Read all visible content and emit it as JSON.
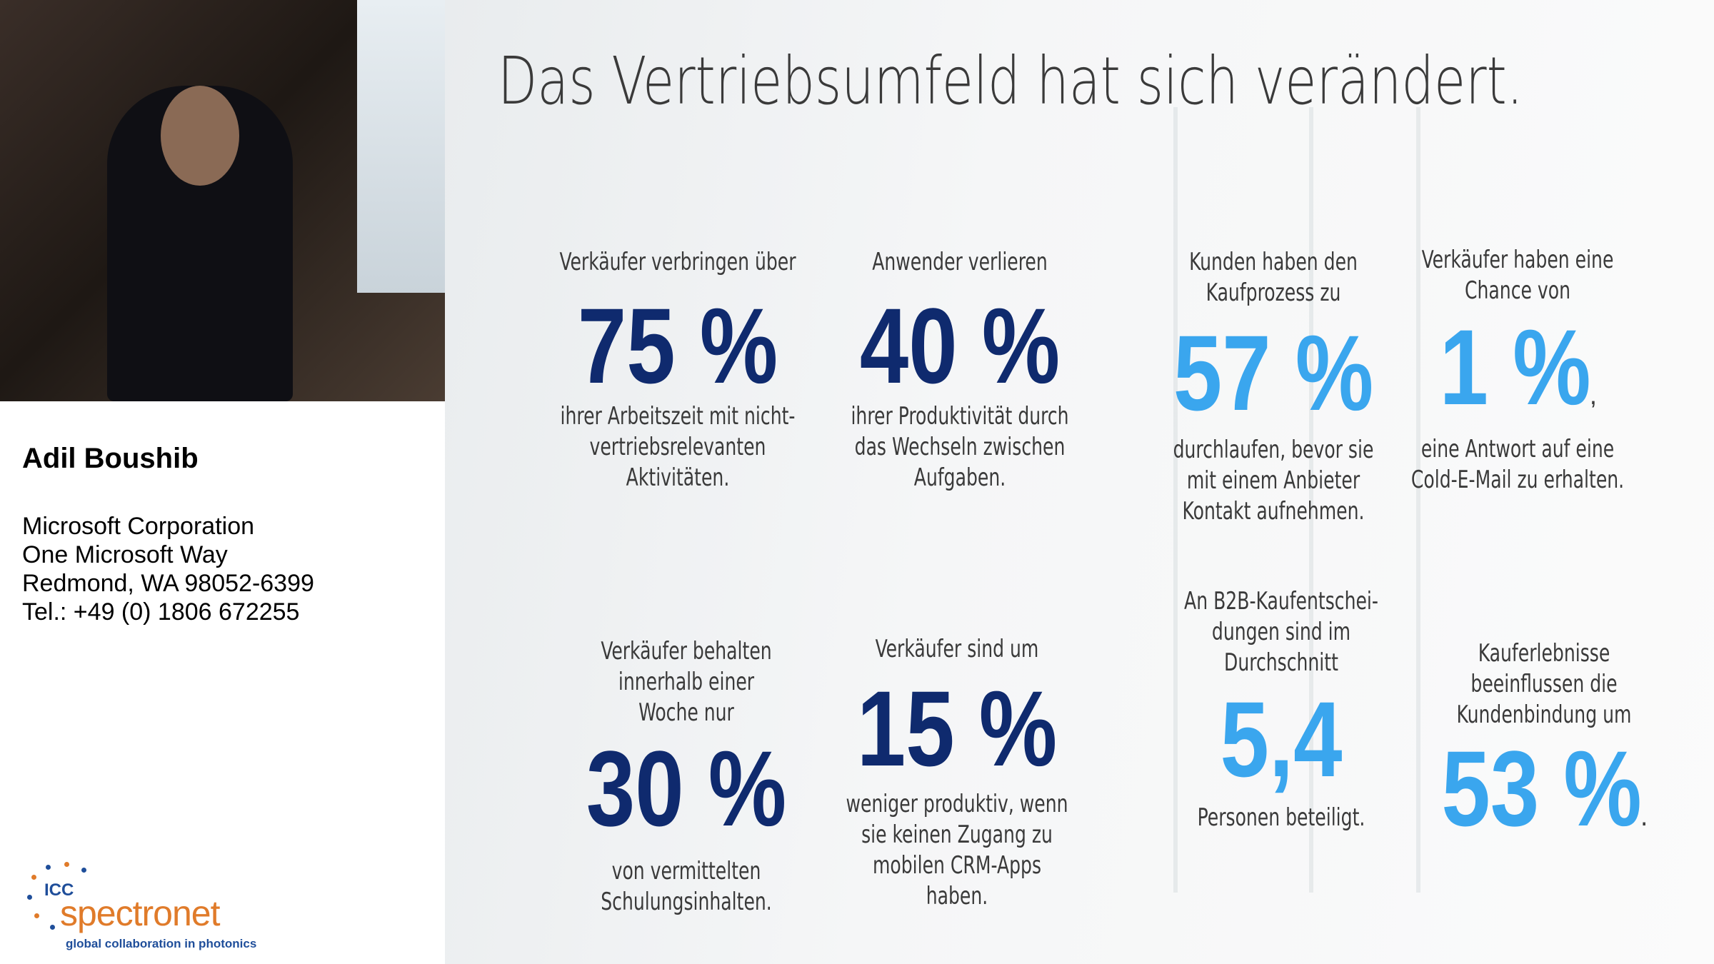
{
  "speaker": {
    "name": "Adil Boushib",
    "address": [
      "Microsoft Corporation",
      "One Microsoft Way",
      "Redmond, WA 98052-6399",
      "Tel.: +49 (0) 1806 672255"
    ]
  },
  "logo": {
    "mark": "ICC",
    "name": "spectronet",
    "tagline": "global collaboration in photonics"
  },
  "slide": {
    "title": "Das Vertriebsumfeld hat sich verändert.",
    "dark_color": "#0f2a6e",
    "light_color": "#3aa6ee",
    "stats": [
      {
        "intro": [
          "Verkäufer verbringen über"
        ],
        "value": "75 %",
        "after": [
          "ihrer Arbeitszeit mit nicht-",
          "vertriebsrelevanten",
          "Aktivitäten."
        ],
        "accent": "dark"
      },
      {
        "intro": [
          "Anwender verlieren"
        ],
        "value": "40 %",
        "after": [
          "ihrer Produktivität durch",
          "das Wechseln zwischen",
          "Aufgaben."
        ],
        "accent": "dark"
      },
      {
        "intro": [
          "Kunden haben den",
          "Kaufprozess zu"
        ],
        "value": "57 %",
        "after": [
          "durchlaufen, bevor sie",
          "mit einem Anbieter",
          "Kontakt aufnehmen."
        ],
        "accent": "light"
      },
      {
        "intro": [
          "Verkäufer haben eine",
          "Chance von"
        ],
        "value": "1 %",
        "suffix": ",",
        "after": [
          "eine Antwort auf eine",
          "Cold-E-Mail zu erhalten."
        ],
        "accent": "light"
      },
      {
        "intro": [
          "Verkäufer behalten",
          "innerhalb einer",
          "Woche nur"
        ],
        "value": "30 %",
        "after": [
          "von vermittelten",
          "Schulungsinhalten."
        ],
        "accent": "dark"
      },
      {
        "intro": [
          "Verkäufer sind um"
        ],
        "value": "15 %",
        "after": [
          "weniger produktiv, wenn",
          "sie keinen Zugang zu",
          "mobilen CRM-Apps",
          "haben."
        ],
        "accent": "dark"
      },
      {
        "intro": [
          "An B2B-Kaufentschei-",
          "dungen sind im",
          "Durchschnitt"
        ],
        "value": "5,4",
        "after": [
          "Personen beteiligt."
        ],
        "accent": "light"
      },
      {
        "intro": [
          "Kauferlebnisse",
          "beeinflussen die",
          "Kundenbindung um"
        ],
        "value": "53 %",
        "suffix": ".",
        "after": [],
        "accent": "light"
      }
    ]
  }
}
